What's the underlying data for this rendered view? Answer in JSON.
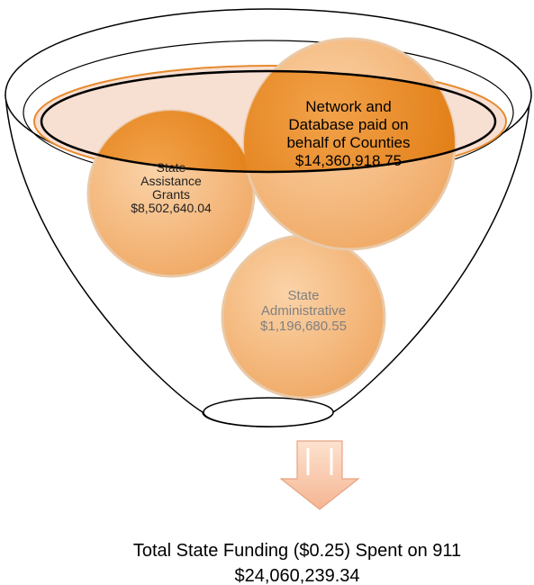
{
  "nodes": [
    {
      "label_lines": [
        "Network and",
        "Database paid on",
        "behalf of Counties"
      ],
      "amount": "$14,360,918.75"
    },
    {
      "label_lines": [
        "State",
        "Assistance",
        "Grants"
      ],
      "amount": "$8,502,640.04"
    },
    {
      "label_lines": [
        "State",
        "Administrative"
      ],
      "amount": "$1,196,680.55"
    }
  ],
  "total": {
    "label": "Total State Funding ($0.25) Spent on 911",
    "amount": "$24,060,239.34"
  }
}
